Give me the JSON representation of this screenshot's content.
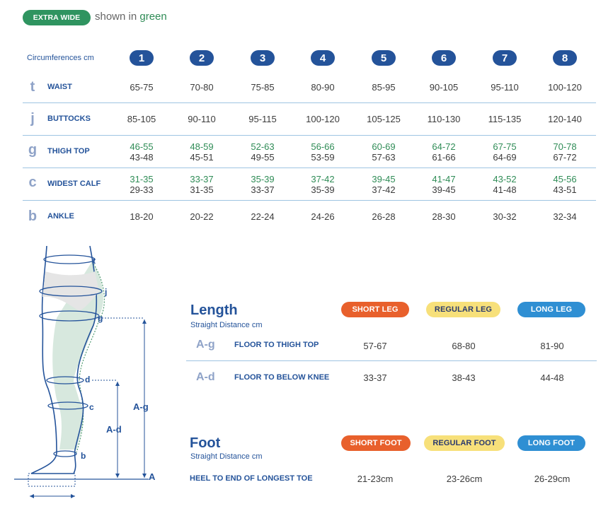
{
  "legend": {
    "badge": "EXTRA WIDE",
    "text_prefix": "shown in ",
    "text_green": "green"
  },
  "circumference": {
    "header_label": "Circumferences cm",
    "sizes": [
      "1",
      "2",
      "3",
      "4",
      "5",
      "6",
      "7",
      "8"
    ],
    "rows": [
      {
        "letter": "t",
        "name": "WAIST",
        "values": [
          [
            "65-75"
          ],
          [
            "70-80"
          ],
          [
            "75-85"
          ],
          [
            "80-90"
          ],
          [
            "85-95"
          ],
          [
            "90-105"
          ],
          [
            "95-110"
          ],
          [
            "100-120"
          ]
        ]
      },
      {
        "letter": "j",
        "name": "BUTTOCKS",
        "values": [
          [
            "85-105"
          ],
          [
            "90-110"
          ],
          [
            "95-115"
          ],
          [
            "100-120"
          ],
          [
            "105-125"
          ],
          [
            "110-130"
          ],
          [
            "115-135"
          ],
          [
            "120-140"
          ]
        ]
      },
      {
        "letter": "g",
        "name": "THIGH TOP",
        "values": [
          [
            "46-55",
            "43-48"
          ],
          [
            "48-59",
            "45-51"
          ],
          [
            "52-63",
            "49-55"
          ],
          [
            "56-66",
            "53-59"
          ],
          [
            "60-69",
            "57-63"
          ],
          [
            "64-72",
            "61-66"
          ],
          [
            "67-75",
            "64-69"
          ],
          [
            "70-78",
            "67-72"
          ]
        ]
      },
      {
        "letter": "c",
        "name": "WIDEST CALF",
        "values": [
          [
            "31-35",
            "29-33"
          ],
          [
            "33-37",
            "31-35"
          ],
          [
            "35-39",
            "33-37"
          ],
          [
            "37-42",
            "35-39"
          ],
          [
            "39-45",
            "37-42"
          ],
          [
            "41-47",
            "39-45"
          ],
          [
            "43-52",
            "41-48"
          ],
          [
            "45-56",
            "43-51"
          ]
        ]
      },
      {
        "letter": "b",
        "name": "ANKLE",
        "values": [
          [
            "18-20"
          ],
          [
            "20-22"
          ],
          [
            "22-24"
          ],
          [
            "24-26"
          ],
          [
            "26-28"
          ],
          [
            "28-30"
          ],
          [
            "30-32"
          ],
          [
            "32-34"
          ]
        ]
      }
    ]
  },
  "length": {
    "title": "Length",
    "subtitle": "Straight Distance cm",
    "columns": [
      "SHORT LEG",
      "REGULAR LEG",
      "LONG LEG"
    ],
    "column_colors": [
      "#e8602c",
      "#f7e07a",
      "#2f8fd3"
    ],
    "rows": [
      {
        "code": "A-g",
        "name": "FLOOR TO THIGH TOP",
        "values": [
          "57-67",
          "68-80",
          "81-90"
        ]
      },
      {
        "code": "A-d",
        "name": "FLOOR TO BELOW KNEE",
        "values": [
          "33-37",
          "38-43",
          "44-48"
        ]
      }
    ]
  },
  "foot": {
    "title": "Foot",
    "subtitle": "Straight Distance cm",
    "columns": [
      "SHORT FOOT",
      "REGULAR FOOT",
      "LONG FOOT"
    ],
    "row": {
      "name": "HEEL TO END OF LONGEST TOE",
      "values": [
        "21-23cm",
        "23-26cm",
        "26-29cm"
      ]
    }
  },
  "diagram": {
    "labels": {
      "t": "t",
      "j": "j",
      "g": "g",
      "d": "d",
      "c": "c",
      "b": "b",
      "A": "A",
      "Ag": "A-g",
      "Ad": "A-d"
    }
  },
  "colors": {
    "navy": "#24539a",
    "green": "#2f8c56",
    "line": "#9ec4e2"
  }
}
